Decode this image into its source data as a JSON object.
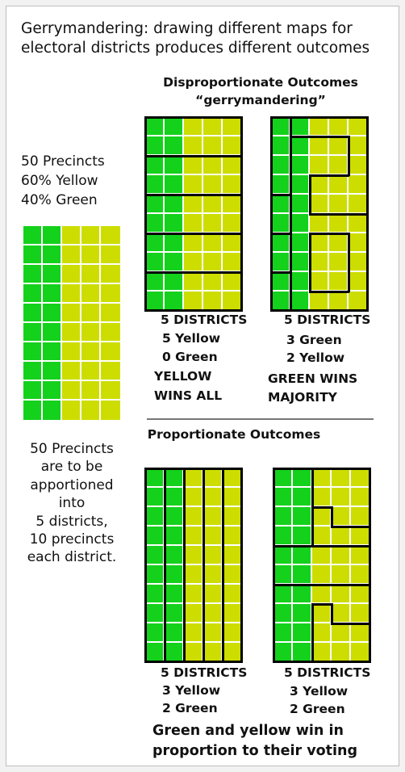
{
  "caption": "Gerrymandering: drawing different maps for electoral districts produces different outcomes",
  "disproportionate": {
    "title_line1": "Disproportionate Outcomes",
    "title_line2": "“gerrymandering”"
  },
  "proportionate": {
    "title": "Proportionate Outcomes"
  },
  "legend": {
    "line1": "50 Precincts",
    "line2": "60% Yellow",
    "line3": "40% Green"
  },
  "apportion": {
    "lines": [
      "50 Precincts",
      "are to be",
      "apportioned",
      "into",
      "5 districts,",
      "10 precincts",
      "each district."
    ]
  },
  "maps": {
    "map1": {
      "districts": "5 DISTRICTS",
      "line1": "5 Yellow",
      "line2": "0 Green",
      "result1": "YELLOW",
      "result2": "WINS ALL"
    },
    "map2": {
      "districts": "5 DISTRICTS",
      "line1": "3 Green",
      "line2": "2 Yellow",
      "result1": "GREEN WINS",
      "result2": "MAJORITY"
    },
    "map3": {
      "districts": "5 DISTRICTS",
      "line1": "3 Yellow",
      "line2": "2 Green"
    },
    "map4": {
      "districts": "5 DISTRICTS",
      "line1": "3 Yellow",
      "line2": "2 Green"
    }
  },
  "footer": {
    "line1": "Green and yellow win in",
    "line2": "proportion to their voting"
  },
  "colors": {
    "green": "#14d11c",
    "yellow": "#cddd00",
    "cell_line": "#ffffff",
    "district_border": "#000000"
  }
}
